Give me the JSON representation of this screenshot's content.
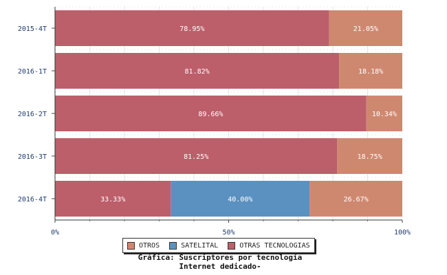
{
  "chart_data": {
    "type": "bar",
    "orientation": "horizontal",
    "stacked": true,
    "categories": [
      "2015-4T",
      "2016-1T",
      "2016-2T",
      "2016-3T",
      "2016-4T"
    ],
    "series": [
      {
        "name": "OTRAS TECNOLOGIAS",
        "values": [
          78.95,
          81.82,
          89.66,
          81.25,
          33.33
        ],
        "labels": [
          "78.95%",
          "81.82%",
          "89.66%",
          "81.25%",
          "33.33%"
        ],
        "color": "#bc5f6a"
      },
      {
        "name": "SATELITAL",
        "values": [
          0,
          0,
          0,
          0,
          40.0
        ],
        "labels": [
          "",
          "",
          "",
          "",
          "40.00%"
        ],
        "color": "#5b91c0"
      },
      {
        "name": "OTROS",
        "values": [
          21.05,
          18.18,
          10.34,
          18.75,
          26.67
        ],
        "labels": [
          "21.05%",
          "18.18%",
          "10.34%",
          "18.75%",
          "26.67%"
        ],
        "color": "#cf8870"
      }
    ],
    "xlim": [
      0,
      100
    ],
    "xticks": [
      "0%",
      "50%",
      "100%"
    ],
    "legend": {
      "position": "bottom",
      "items": [
        {
          "name": "OTROS",
          "color": "#cf8870"
        },
        {
          "name": "SATELITAL",
          "color": "#5b91c0"
        },
        {
          "name": "OTRAS TECNOLOGIAS",
          "color": "#bc5f6a"
        }
      ]
    },
    "caption_line1": "Gráfica: Suscriptores por tecnología",
    "caption_line2": "Internet dedicado-",
    "grid": true
  }
}
